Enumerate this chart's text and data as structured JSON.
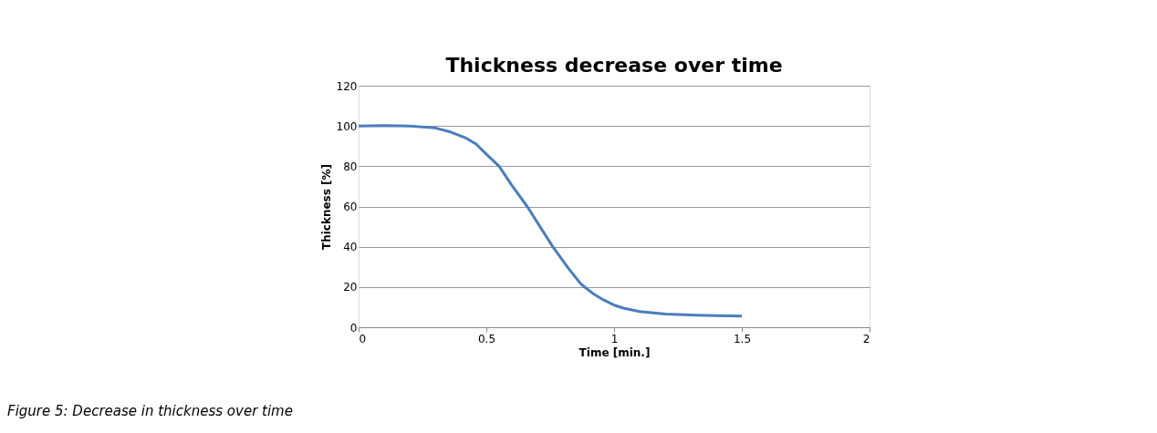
{
  "chart_data": {
    "type": "line",
    "title": "Thickness decrease over time",
    "xlabel": "Time [min.]",
    "ylabel": "Thickness [%]",
    "x": [
      0,
      0.1,
      0.2,
      0.3,
      0.36,
      0.42,
      0.46,
      0.5,
      0.55,
      0.6,
      0.66,
      0.71,
      0.76,
      0.82,
      0.87,
      0.92,
      0.96,
      1.0,
      1.04,
      1.1,
      1.2,
      1.3,
      1.4,
      1.5
    ],
    "series": [
      {
        "color": "#4a7ebb",
        "values": [
          100,
          100.2,
          100,
          99,
          97,
          94,
          91,
          86,
          80,
          70.5,
          60,
          50,
          40,
          29.5,
          21.5,
          16.5,
          13.5,
          11,
          9.4,
          7.8,
          6.6,
          6.1,
          5.8,
          5.5
        ]
      }
    ],
    "xlim": [
      0,
      2
    ],
    "xticks": [
      0,
      0.5,
      1,
      1.5,
      2
    ],
    "ylim": [
      0,
      120
    ],
    "yticks": [
      0,
      20,
      40,
      60,
      80,
      100,
      120
    ],
    "grid": "y",
    "marker": "none",
    "line_style": "solid",
    "annotations": [
      "Figure 5: Decrease in thickness over time"
    ]
  }
}
